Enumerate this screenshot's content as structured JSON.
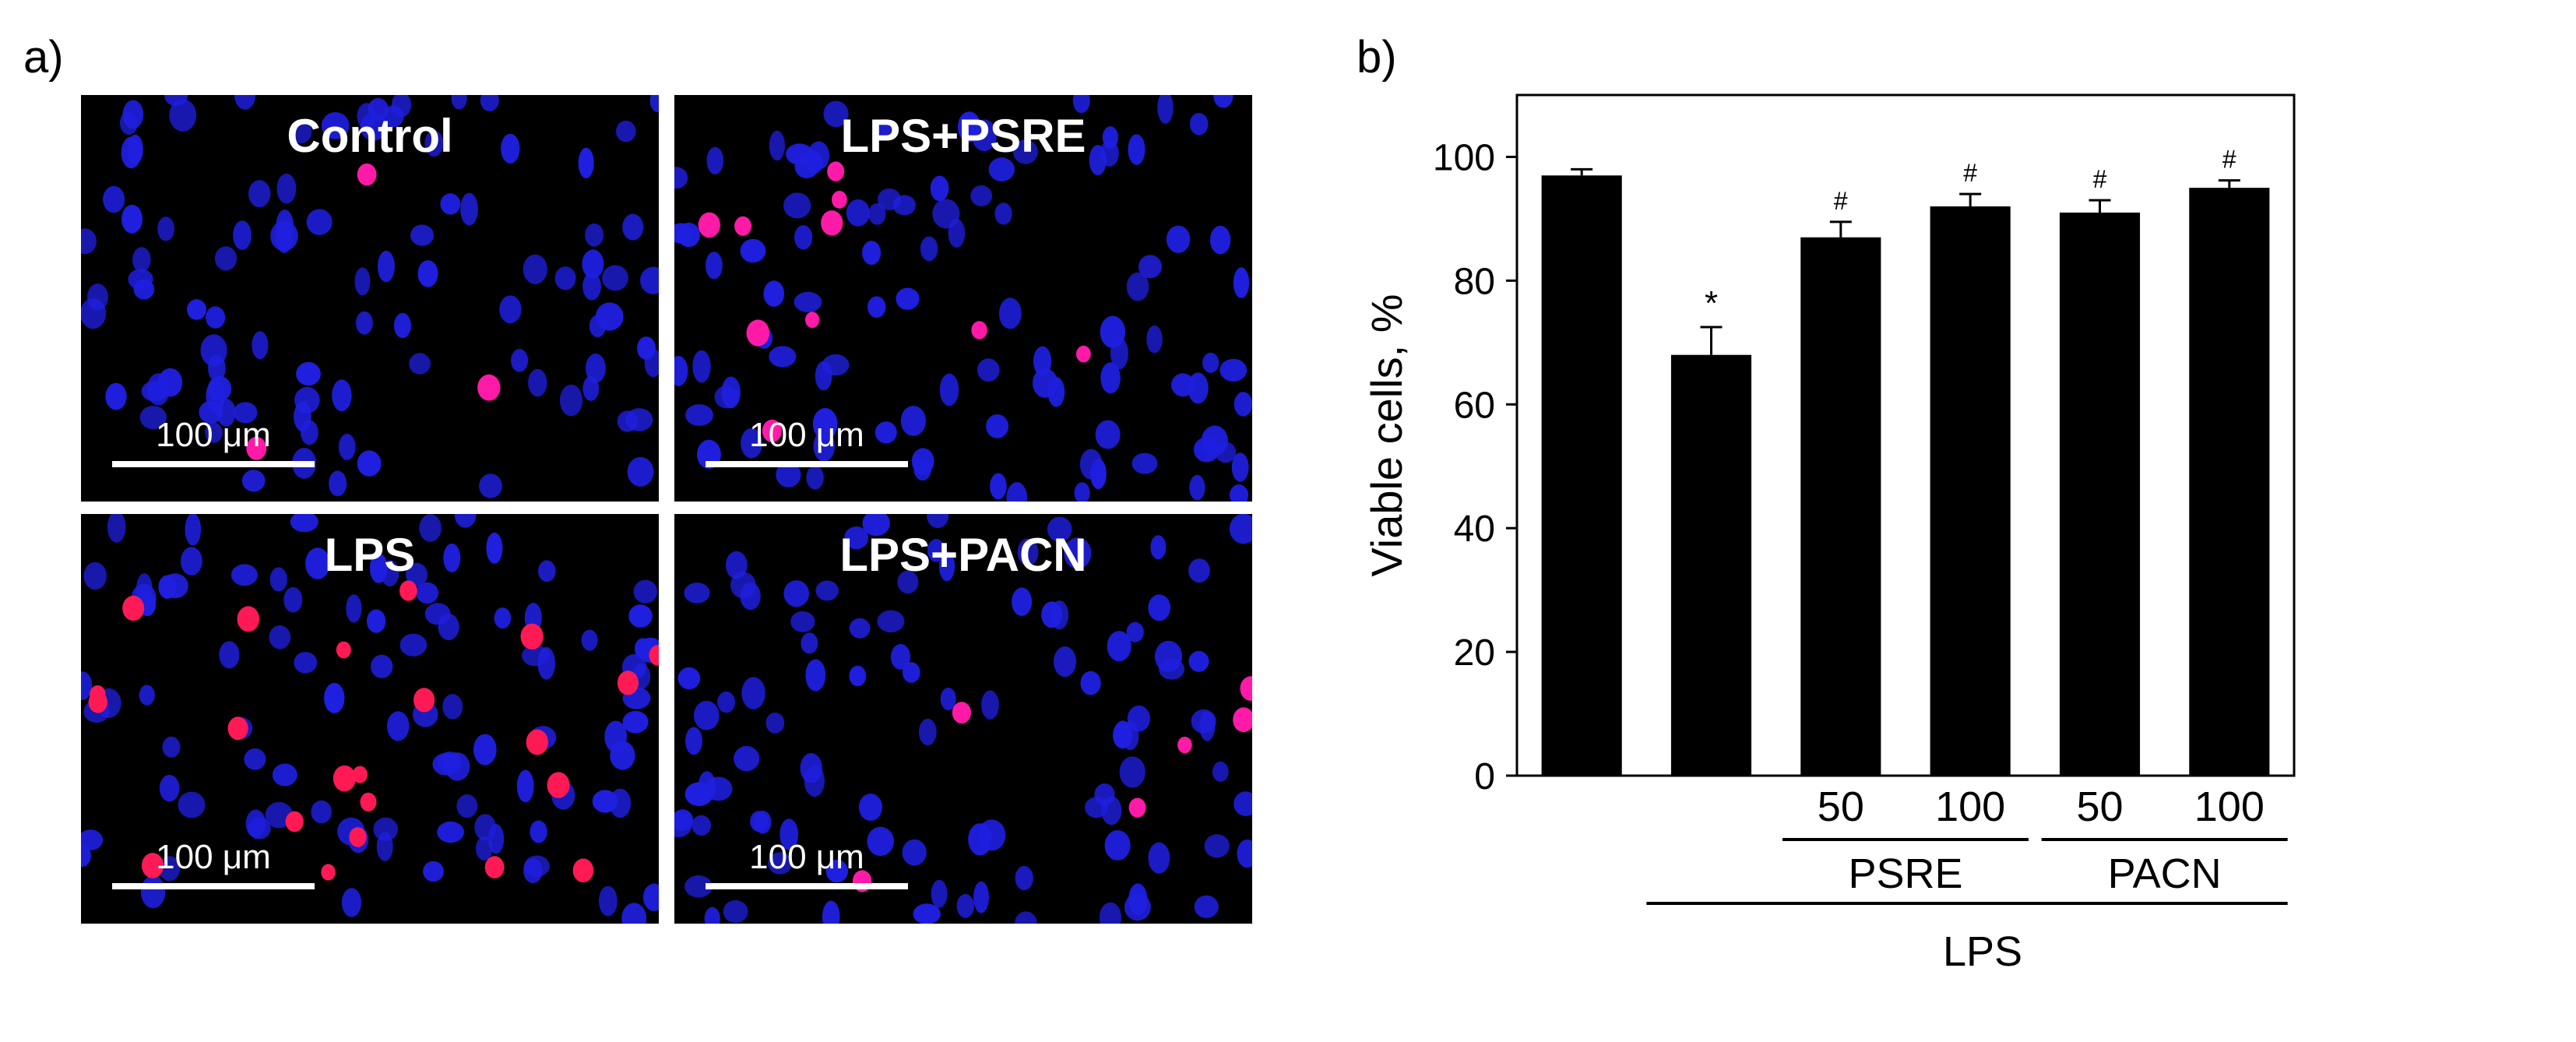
{
  "panel_a": {
    "label": "a)",
    "images": [
      {
        "title": "Control",
        "scale": "100 μm",
        "nuclei_color": "#1f1fe0",
        "dead_color": "#ff1aa8"
      },
      {
        "title": "LPS+PSRE",
        "scale": "100 μm",
        "nuclei_color": "#1f1fe0",
        "dead_color": "#ff1aa8"
      },
      {
        "title": "LPS",
        "scale": "100 μm",
        "nuclei_color": "#1f1fe0",
        "dead_color": "#ff1a55"
      },
      {
        "title": "LPS+PACN",
        "scale": "100 μm",
        "nuclei_color": "#1f1fe0",
        "dead_color": "#ff1aa8"
      }
    ]
  },
  "panel_b": {
    "label": "b)"
  },
  "chart_data": {
    "type": "bar",
    "ylabel": "Viable cells, %",
    "ylim": [
      0,
      110
    ],
    "yticks": [
      0,
      20,
      40,
      60,
      80,
      100
    ],
    "grid": false,
    "bar_color": "#000000",
    "values": [
      97,
      68,
      87,
      92,
      91,
      95
    ],
    "errors": [
      1,
      4.5,
      2.5,
      2,
      2,
      1.2
    ],
    "annotations": [
      "",
      "*",
      "#",
      "#",
      "#",
      "#"
    ],
    "dose_labels": [
      "",
      "",
      "50",
      "100",
      "50",
      "100"
    ],
    "groups": [
      {
        "label": "PSRE",
        "from": 2,
        "to": 3
      },
      {
        "label": "PACN",
        "from": 4,
        "to": 5
      }
    ],
    "outer_group": {
      "label": "LPS",
      "from": 1,
      "to": 5
    }
  }
}
